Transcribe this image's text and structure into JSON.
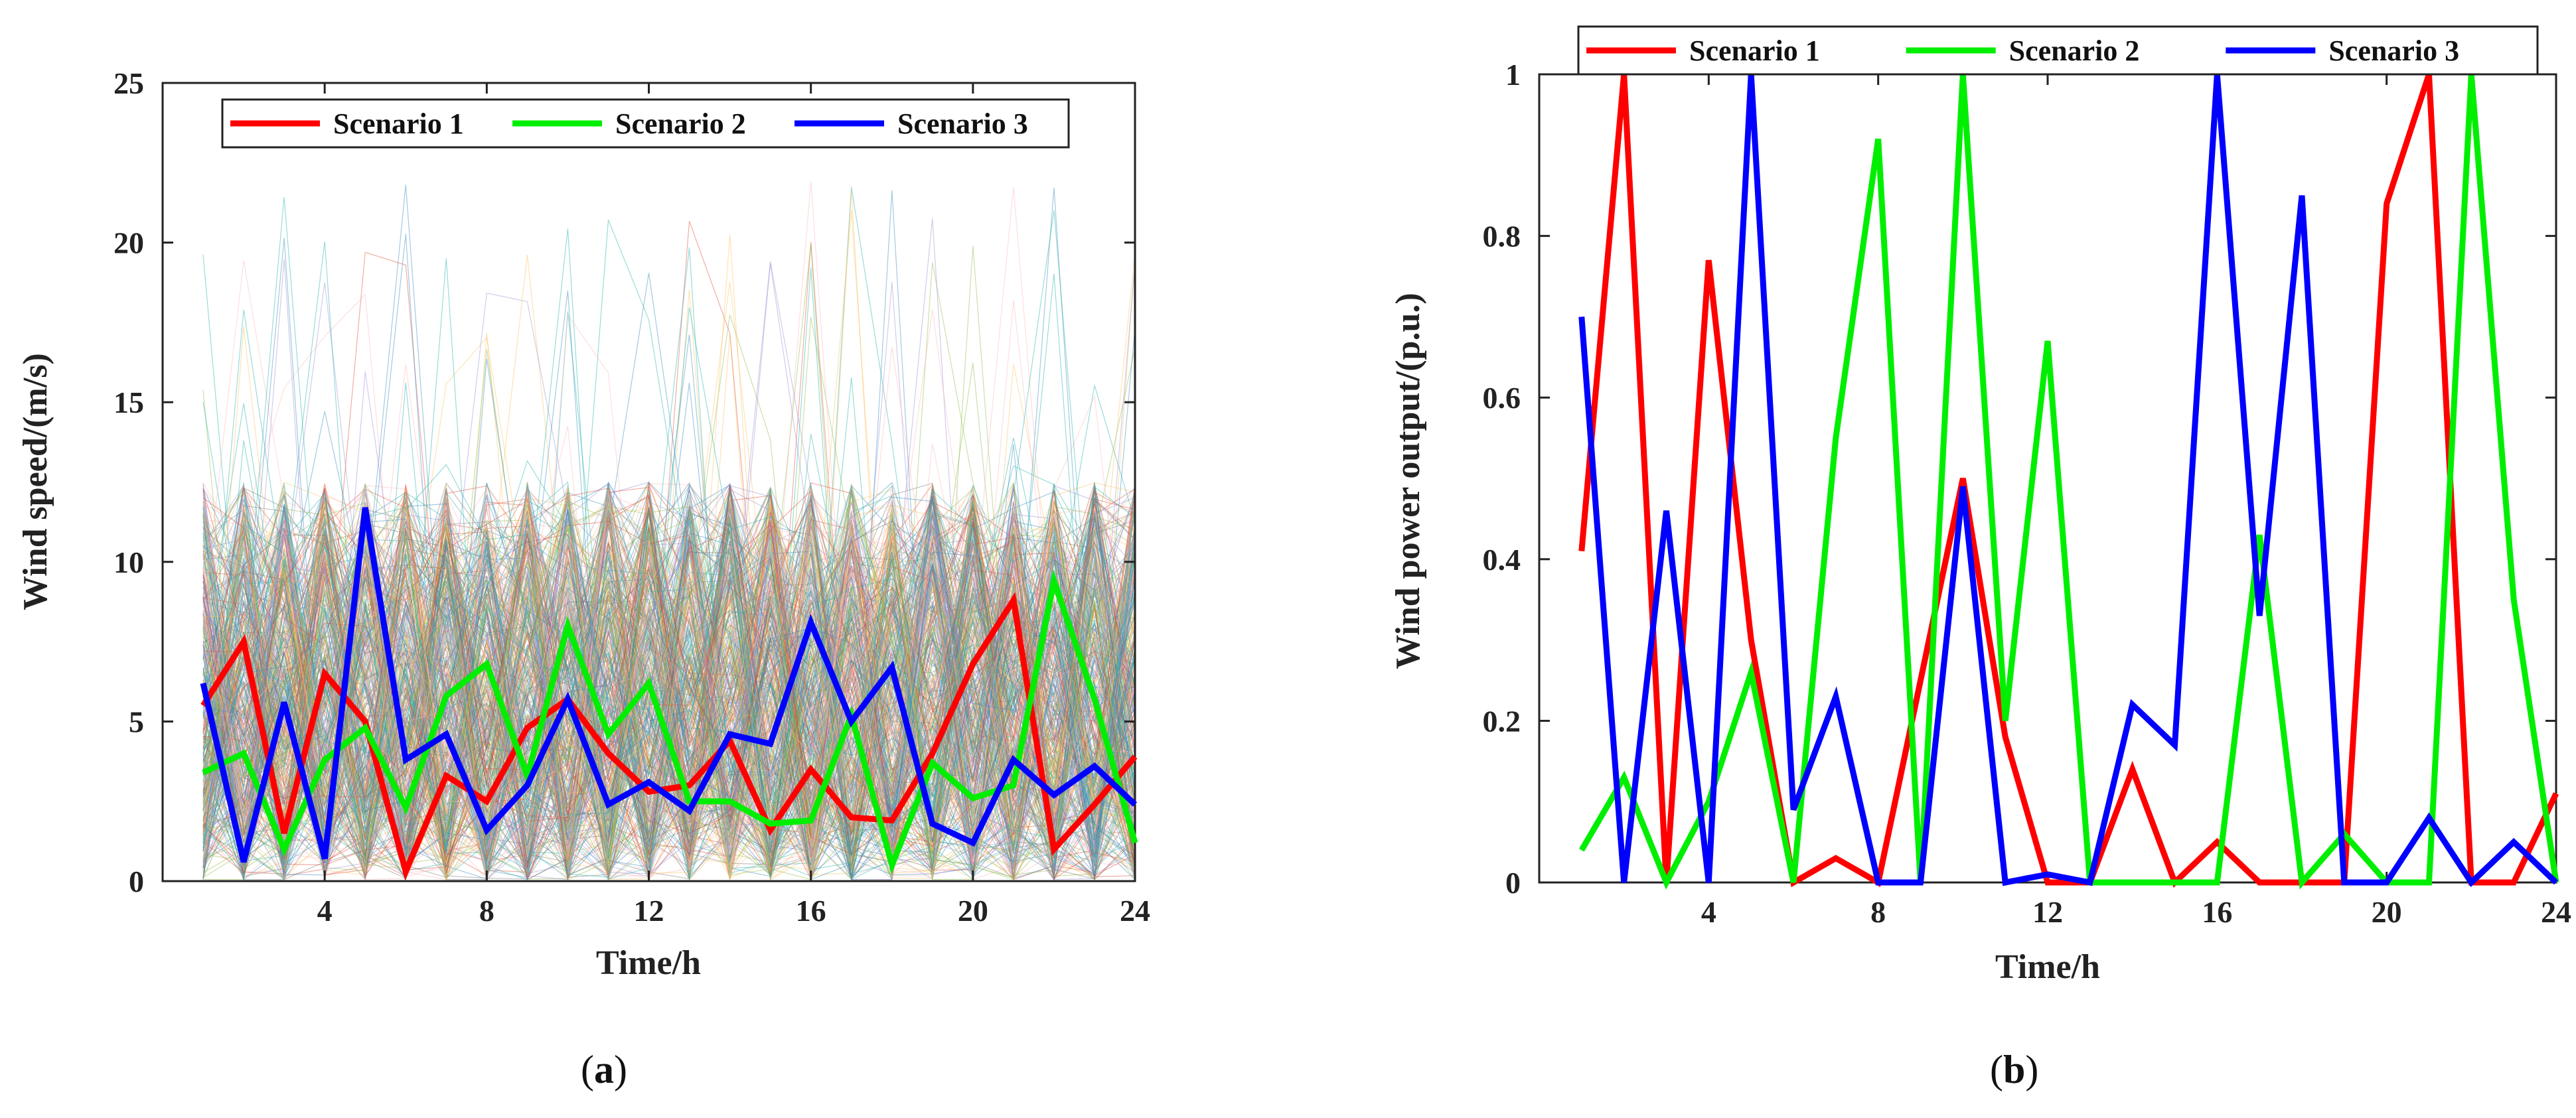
{
  "chart_data": [
    {
      "type": "line",
      "panel_label": "a",
      "xlabel": "Time/h",
      "ylabel": "Wind speed/(m/s)",
      "xlim": [
        0,
        24
      ],
      "ylim": [
        0,
        25
      ],
      "xticks": [
        4,
        8,
        12,
        16,
        20,
        24
      ],
      "yticks": [
        0,
        5,
        10,
        15,
        20,
        25
      ],
      "x": [
        1,
        2,
        3,
        4,
        5,
        6,
        7,
        8,
        9,
        10,
        11,
        12,
        13,
        14,
        15,
        16,
        17,
        18,
        19,
        20,
        21,
        22,
        23,
        24
      ],
      "background": "dense band of Monte Carlo sampled wind speed scenarios, roughly 0 to 13 m/s with occasional peaks up to about 23 m/s",
      "background_colors": [
        "#e24a33",
        "#348abd",
        "#988ed5",
        "#8eba42",
        "#fbc15e",
        "#777777",
        "#ffb5b8",
        "#20b2aa"
      ],
      "legend_position": "top",
      "series": [
        {
          "name": "Scenario 1",
          "color": "#ff0000",
          "values": [
            5.5,
            7.5,
            1.5,
            6.5,
            5.0,
            0.3,
            3.3,
            2.5,
            4.8,
            5.7,
            4.0,
            2.8,
            3.0,
            4.4,
            1.6,
            3.5,
            2.0,
            1.9,
            4.0,
            6.8,
            8.8,
            1.0,
            2.4,
            3.9
          ]
        },
        {
          "name": "Scenario 2",
          "color": "#00ee00",
          "values": [
            3.4,
            4.0,
            1.0,
            3.8,
            4.8,
            2.3,
            5.8,
            6.8,
            3.3,
            8.0,
            4.6,
            6.2,
            2.5,
            2.5,
            1.8,
            1.9,
            5.2,
            0.5,
            3.7,
            2.6,
            3.0,
            9.4,
            5.7,
            1.2
          ]
        },
        {
          "name": "Scenario 3",
          "color": "#0000ff",
          "values": [
            6.2,
            0.6,
            5.6,
            0.7,
            11.7,
            3.8,
            4.6,
            1.6,
            3.0,
            5.7,
            2.4,
            3.1,
            2.2,
            4.6,
            4.3,
            8.1,
            5.0,
            6.7,
            1.8,
            1.2,
            3.8,
            2.7,
            3.6,
            2.4
          ]
        }
      ]
    },
    {
      "type": "line",
      "panel_label": "b",
      "xlabel": "Time/h",
      "ylabel": "Wind power output/(p.u.)",
      "xlim": [
        0,
        24
      ],
      "ylim": [
        0,
        1
      ],
      "xticks": [
        4,
        8,
        12,
        16,
        20,
        24
      ],
      "yticks": [
        0,
        0.2,
        0.4,
        0.6,
        0.8,
        1
      ],
      "x": [
        1,
        2,
        3,
        4,
        5,
        6,
        7,
        8,
        9,
        10,
        11,
        12,
        13,
        14,
        15,
        16,
        17,
        18,
        19,
        20,
        21,
        22,
        23,
        24
      ],
      "legend_position": "top (above axes)",
      "series": [
        {
          "name": "Scenario 1",
          "color": "#ff0000",
          "values": [
            0.41,
            1.0,
            0.0,
            0.77,
            0.3,
            0.0,
            0.03,
            0.0,
            0.25,
            0.5,
            0.18,
            0.0,
            0.0,
            0.14,
            0.0,
            0.05,
            0.0,
            0.0,
            0.0,
            0.84,
            1.0,
            0.0,
            0.0,
            0.11
          ]
        },
        {
          "name": "Scenario 2",
          "color": "#00ee00",
          "values": [
            0.04,
            0.13,
            0.0,
            0.1,
            0.26,
            0.0,
            0.55,
            0.92,
            0.0,
            1.0,
            0.2,
            0.67,
            0.0,
            0.0,
            0.0,
            0.0,
            0.43,
            0.0,
            0.06,
            0.0,
            0.0,
            1.0,
            0.35,
            0.0
          ]
        },
        {
          "name": "Scenario 3",
          "color": "#0000ff",
          "values": [
            0.7,
            0.0,
            0.46,
            0.0,
            1.0,
            0.09,
            0.23,
            0.0,
            0.0,
            0.49,
            0.0,
            0.01,
            0.0,
            0.22,
            0.17,
            1.0,
            0.33,
            0.85,
            0.0,
            0.0,
            0.08,
            0.0,
            0.05,
            0.0
          ]
        }
      ]
    }
  ]
}
